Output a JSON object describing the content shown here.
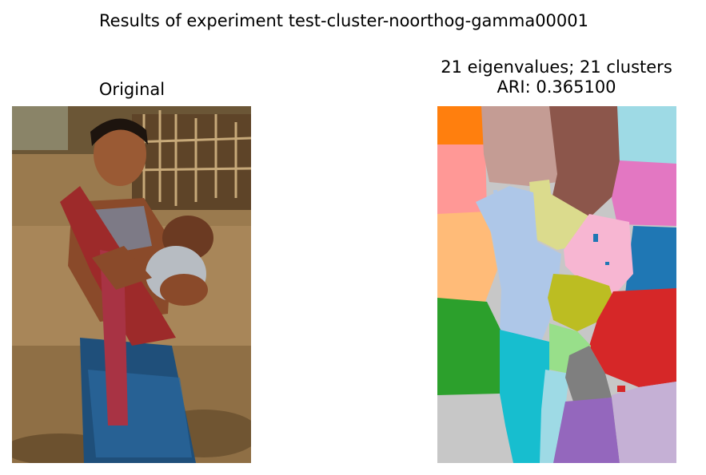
{
  "figure": {
    "suptitle": "Results of experiment test-cluster-noorthog-gamma00001"
  },
  "panels": {
    "left": {
      "title": "Original"
    },
    "right": {
      "title_line1": "21 eigenvalues; 21 clusters",
      "title_line2": "ARI: 0.365100"
    }
  },
  "chart_data": [
    {
      "type": "image",
      "title": "Original",
      "content": "photograph"
    },
    {
      "type": "heatmap",
      "title": "21 eigenvalues; 21 clusters\nARI: 0.365100",
      "eigenvalues": 21,
      "clusters": 21,
      "ari": 0.3651,
      "cluster_colors": [
        "#1f77b4",
        "#aec7e8",
        "#ff7f0e",
        "#ffbb78",
        "#2ca02c",
        "#98df8a",
        "#d62728",
        "#ff9896",
        "#9467bd",
        "#c5b0d5",
        "#8c564b",
        "#c49c94",
        "#e377c2",
        "#f7b6d2",
        "#7f7f7f",
        "#c7c7c7",
        "#bcbd22",
        "#dbdb8d",
        "#17becf",
        "#9edae5"
      ]
    }
  ]
}
